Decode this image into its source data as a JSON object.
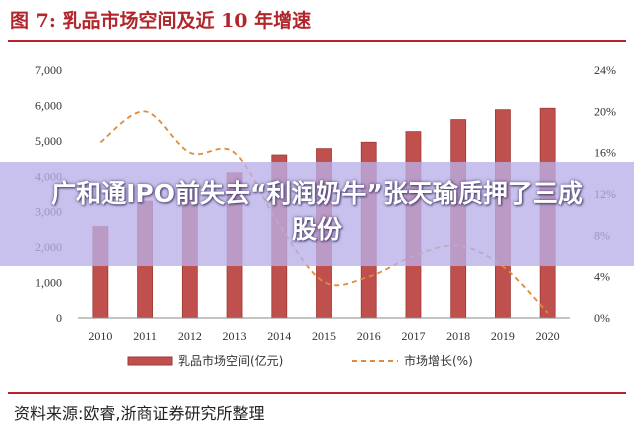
{
  "figure_title": "图 7:  乳品市场空间及近 10 年增速",
  "source_note": "资料来源:欧睿,浙商证券研究所整理",
  "headline": "广和通IPO前失去“利润奶牛”张天瑜质押了三成股份",
  "colors": {
    "bar": "#c0504d",
    "bar_edge": "#9e3835",
    "line": "#e08a3c",
    "title": "#b2262b"
  },
  "chart_data": {
    "type": "bar",
    "categories": [
      "2010",
      "2011",
      "2012",
      "2013",
      "2014",
      "2015",
      "2016",
      "2017",
      "2018",
      "2019",
      "2020"
    ],
    "series": [
      {
        "name": "乳品市场空间(亿元)",
        "type": "bar",
        "axis": "left",
        "values": [
          2580,
          3300,
          3700,
          4100,
          4600,
          4780,
          4960,
          5260,
          5600,
          5880,
          5920
        ]
      },
      {
        "name": "市场增长(%)",
        "type": "line",
        "axis": "right",
        "style": "dashed",
        "values": [
          17,
          20,
          16,
          16,
          9,
          3.5,
          4,
          6,
          7,
          5,
          0.5
        ]
      }
    ],
    "y_left": {
      "ticks": [
        "0",
        "1,000",
        "2,000",
        "3,000",
        "4,000",
        "5,000",
        "6,000",
        "7,000"
      ],
      "min": 0,
      "max": 7000
    },
    "y_right": {
      "ticks": [
        "0%",
        "4%",
        "8%",
        "12%",
        "16%",
        "20%",
        "24%"
      ],
      "min": 0,
      "max": 24
    },
    "grid": false,
    "legend_position": "bottom"
  }
}
